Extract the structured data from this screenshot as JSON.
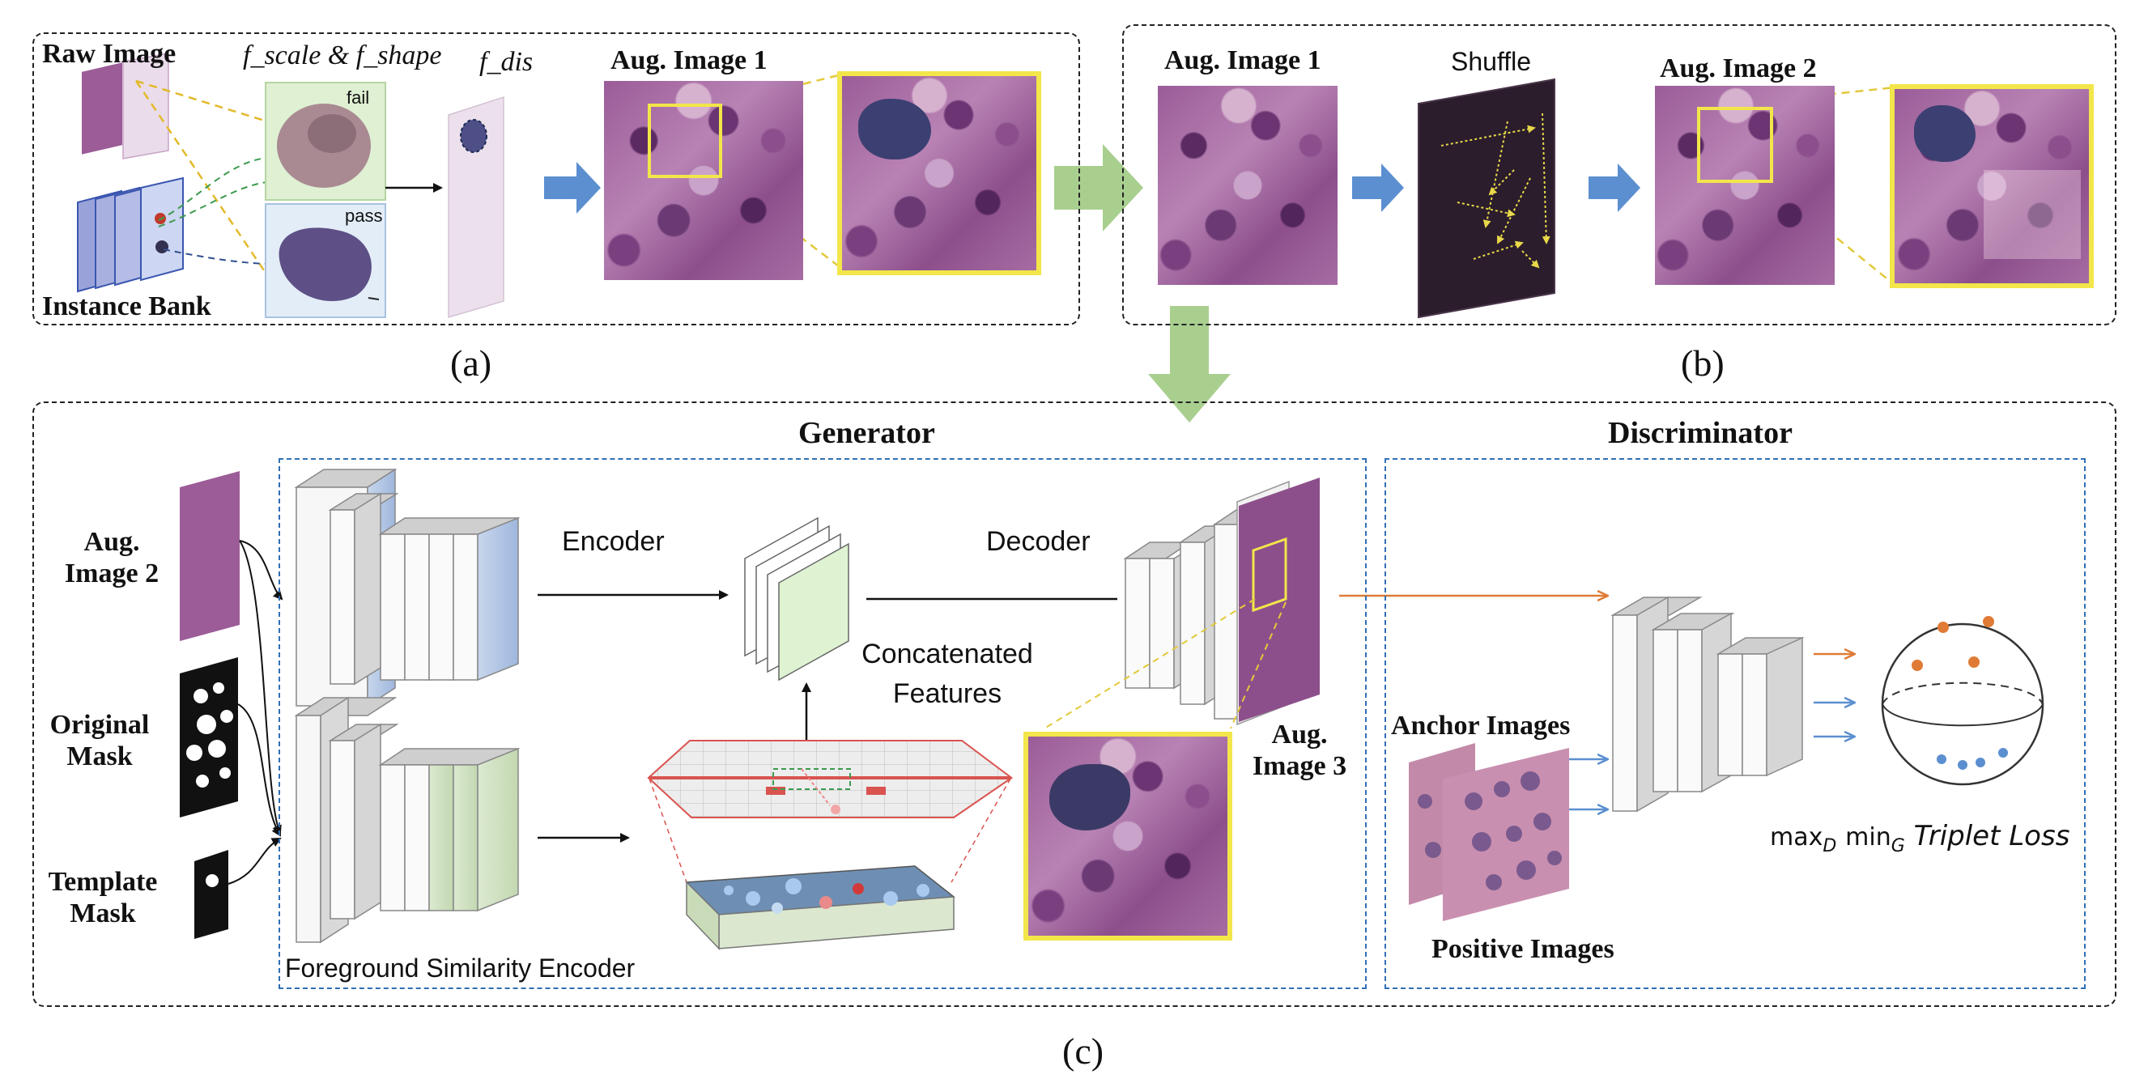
{
  "panel_a": {
    "raw_image": "Raw Image",
    "f_scale_shape": "f_scale & f_shape",
    "f_dis": "f_dis",
    "fail": "fail",
    "pass": "pass",
    "instance_bank": "Instance Bank",
    "aug_image_1": "Aug. Image 1",
    "caption": "(a)"
  },
  "panel_b": {
    "aug_image_1": "Aug. Image 1",
    "shuffle": "Shuffle",
    "aug_image_2": "Aug. Image 2",
    "caption": "(b)"
  },
  "panel_c": {
    "generator": "Generator",
    "discriminator": "Discriminator",
    "aug_image_2": "Aug. Image 2",
    "original_mask": "Original Mask",
    "template_mask": "Template Mask",
    "encoder": "Encoder",
    "decoder": "Decoder",
    "concatenated_features": "Concatenated Features",
    "foreground_similarity_encoder": "Foreground Similarity Encoder",
    "aug_image_3": "Aug. Image 3",
    "anchor_images": "Anchor Images",
    "positive_images": "Positive Images",
    "loss_max": "max",
    "loss_max_sub": "D",
    "loss_min": "min",
    "loss_min_sub": "G",
    "loss_name": "Triplet Loss",
    "caption": "(c)"
  },
  "colors": {
    "green_arrow": "#a9cf8f",
    "blue_arrow": "#5b8fd0",
    "orange_arrow": "#e07b35",
    "zoom_border": "#f2e64a",
    "encoder_blue": "#b8cbe6",
    "encoder_green": "#d3e4c6",
    "concat_green": "#dff3d2",
    "panel_border": "#222222",
    "sub_border": "#2f6fb5"
  }
}
